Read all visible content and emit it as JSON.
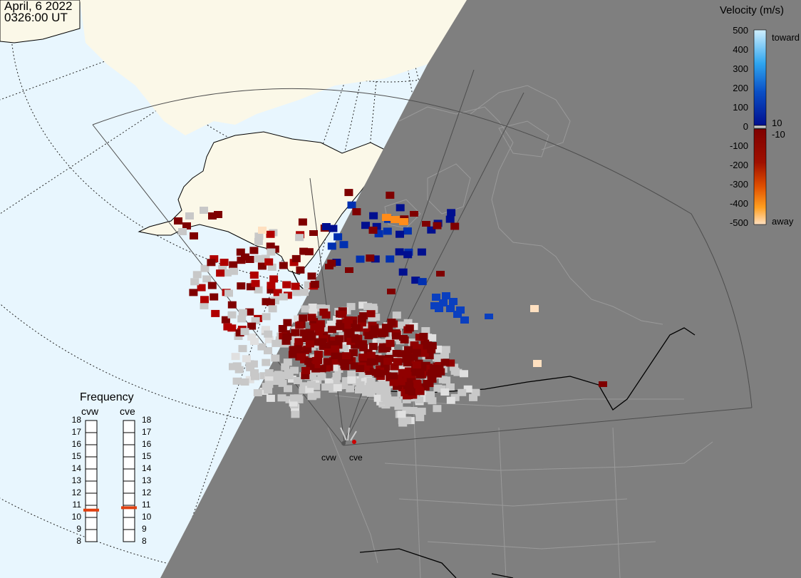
{
  "header": {
    "date": "April, 6 2022",
    "time": "0326:00 UT"
  },
  "legend": {
    "title": "Velocity (m/s)",
    "ticks": [
      "500",
      "400",
      "300",
      "200",
      "100",
      "0",
      "-100",
      "-200",
      "-300",
      "-400",
      "-500"
    ],
    "side_labels": {
      "toward": "toward",
      "away": "away",
      "pos": "10",
      "neg": "-10"
    },
    "colors": {
      "toward_light": "#cfeffe",
      "toward_mid": "#2fa6ef",
      "toward_dark": "#000f8f",
      "away_dark": "#7f0000",
      "away_mid": "#f05f00",
      "away_light": "#ffe0c0",
      "ground": "#c8c8c8"
    }
  },
  "frequency": {
    "title": "Frequency",
    "radars": [
      {
        "name": "cvw",
        "value_mhz": 10.6
      },
      {
        "name": "cve",
        "value_mhz": 10.8
      }
    ],
    "ticks": [
      "18",
      "17",
      "16",
      "15",
      "14",
      "13",
      "12",
      "11",
      "10",
      "9",
      "8"
    ],
    "marker_color": "#e04010"
  },
  "map": {
    "radar_sites": [
      "cvw",
      "cve"
    ],
    "colors": {
      "ocean": "#e8f6fe",
      "land_day": "#fbf8e8",
      "night": "#7f7f7f",
      "border_day": "#000000",
      "border_night": "#9a9a9a",
      "fov": "#4d4d4d"
    }
  }
}
